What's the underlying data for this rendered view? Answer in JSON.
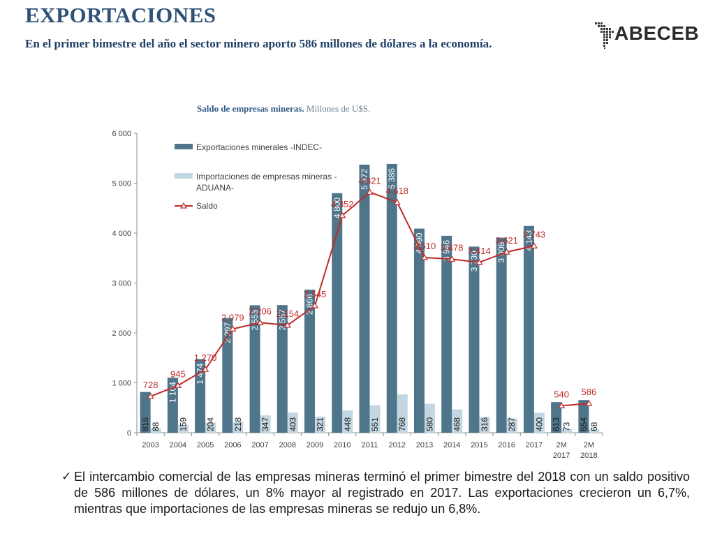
{
  "header": {
    "title": "EXPORTACIONES",
    "subtitle": "En el primer bimestre del año el sector minero aporto 586 millones de dólares a la economía."
  },
  "logo": {
    "text": "ABECEB",
    "icon": "latin-america-dot-map-icon"
  },
  "colors": {
    "title": "#2f5176",
    "export_bar": "#4e7589",
    "import_bar": "#c3d6e1",
    "saldo_line": "#be2b2b"
  },
  "chart_data": {
    "type": "bar",
    "title": "Saldo de empresas mineras.",
    "subtitle": "Millones de U$S.",
    "categories": [
      [
        "2003"
      ],
      [
        "2004"
      ],
      [
        "2005"
      ],
      [
        "2006"
      ],
      [
        "2007"
      ],
      [
        "2008"
      ],
      [
        "2009"
      ],
      [
        "2010"
      ],
      [
        "2011"
      ],
      [
        "2012"
      ],
      [
        "2013"
      ],
      [
        "2014"
      ],
      [
        "2015"
      ],
      [
        "2016"
      ],
      [
        "2017"
      ],
      [
        "2M",
        "2017"
      ],
      [
        "2M",
        "2018"
      ]
    ],
    "series": [
      {
        "name": "Exportaciones minerales -INDEC-",
        "kind": "bar",
        "values": [
          816,
          1104,
          1474,
          2297,
          2553,
          2557,
          2866,
          4800,
          5372,
          5386,
          4090,
          3946,
          3730,
          3908,
          4143,
          613,
          654
        ],
        "labels": [
          "816",
          "1 104",
          "1 474",
          "2 297",
          "2 553",
          "2 557",
          "2 866",
          "4 800",
          "5 372",
          "5 386",
          "4 090",
          "3 946",
          "3 730",
          "3 908",
          "4 143",
          "613",
          "654"
        ]
      },
      {
        "name": "Importaciones de empresas mineras - ADUANA-",
        "kind": "bar",
        "values": [
          88,
          159,
          204,
          218,
          347,
          403,
          321,
          448,
          551,
          768,
          580,
          468,
          316,
          287,
          400,
          73,
          68
        ],
        "labels": [
          "88",
          "159",
          "204",
          "218",
          "347",
          "403",
          "321",
          "448",
          "551",
          "768",
          "580",
          "468",
          "316",
          "287",
          "400",
          "73",
          "68"
        ]
      },
      {
        "name": "Saldo",
        "kind": "line",
        "values": [
          728,
          945,
          1270,
          2079,
          2206,
          2154,
          2545,
          4352,
          4821,
          4618,
          3510,
          3478,
          3414,
          3621,
          3743,
          540,
          586
        ],
        "labels": [
          "728",
          "945",
          "1 270",
          "2 079",
          "2 206",
          "2 154",
          "2 545",
          "4 352",
          "4 821",
          "4 618",
          "3 510",
          "3 478",
          "3 414",
          "3 621",
          "3 743",
          "540",
          "586"
        ]
      }
    ],
    "ylim": [
      0,
      6000
    ],
    "yticks": [
      0,
      1000,
      2000,
      3000,
      4000,
      5000,
      6000
    ],
    "ytick_labels": [
      "0",
      "1 000",
      "2 000",
      "3 000",
      "4 000",
      "5 000",
      "6 000"
    ],
    "legend": {
      "items": [
        [
          "Exportaciones minerales -INDEC-"
        ],
        [
          "Importaciones de empresas mineras -",
          "ADUANA-"
        ],
        [
          "Saldo"
        ]
      ],
      "position": "top-left"
    },
    "grid": false
  },
  "footer": {
    "check_icon": "✓",
    "text": "El intercambio comercial de las empresas mineras terminó el primer bimestre del 2018 con un saldo positivo de 586 millones de dólares, un 8% mayor al registrado en 2017. Las exportaciones crecieron un 6,7%, mientras que importaciones de las empresas mineras se redujo un 6,8%."
  }
}
